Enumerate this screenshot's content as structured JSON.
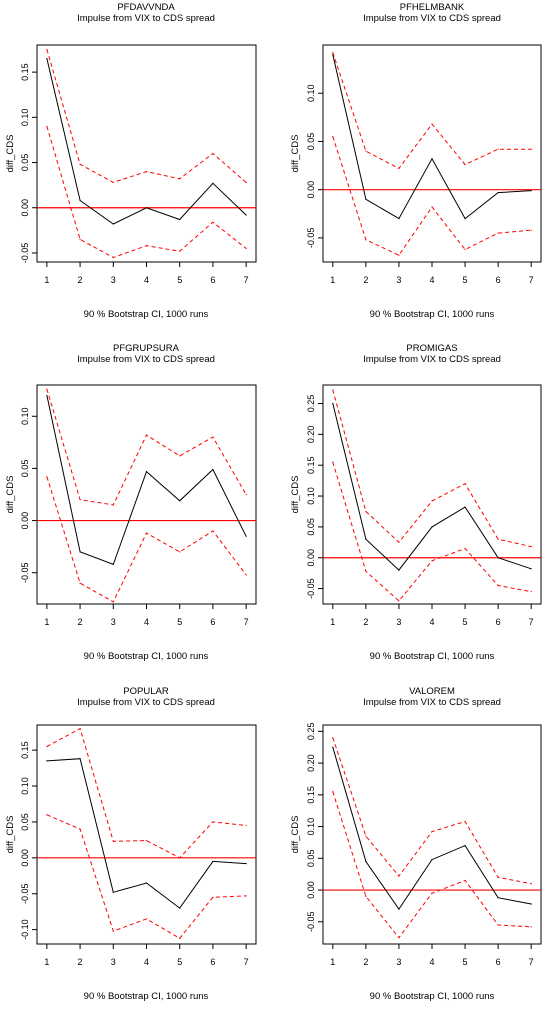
{
  "chart_data": [
    {
      "type": "line",
      "title": "PFDAVVNDA",
      "subtitle": "Impulse from VIX to CDS spread",
      "xlabel": "90 % Bootstrap CI,  1000 runs",
      "ylabel": "diff_CDS",
      "x": [
        1,
        2,
        3,
        4,
        5,
        6,
        7
      ],
      "xticks": [
        "1",
        "2",
        "3",
        "4",
        "5",
        "6",
        "7"
      ],
      "ylim": [
        -0.06,
        0.18
      ],
      "yticks": [
        -0.05,
        0.0,
        0.05,
        0.1,
        0.15
      ],
      "ytick_labels": [
        "-0.05",
        "0.00",
        "0.05",
        "0.10",
        "0.15"
      ],
      "series": [
        {
          "role": "irf",
          "values": [
            0.165,
            0.008,
            -0.018,
            0.0,
            -0.013,
            0.027,
            -0.008
          ]
        },
        {
          "role": "upper",
          "values": [
            0.175,
            0.048,
            0.028,
            0.04,
            0.032,
            0.06,
            0.028
          ]
        },
        {
          "role": "lower",
          "values": [
            0.09,
            -0.035,
            -0.055,
            -0.042,
            -0.048,
            -0.016,
            -0.045
          ]
        }
      ]
    },
    {
      "type": "line",
      "title": "PFHELMBANK",
      "subtitle": "Impulse from VIX to CDS spread",
      "xlabel": "90 % Bootstrap CI,  1000 runs",
      "ylabel": "diff_CDS",
      "x": [
        1,
        2,
        3,
        4,
        5,
        6,
        7
      ],
      "xticks": [
        "1",
        "2",
        "3",
        "4",
        "5",
        "6",
        "7"
      ],
      "ylim": [
        -0.075,
        0.15
      ],
      "yticks": [
        -0.05,
        0.0,
        0.05,
        0.1
      ],
      "ytick_labels": [
        "-0.05",
        "0.00",
        "0.05",
        "0.10"
      ],
      "series": [
        {
          "role": "irf",
          "values": [
            0.14,
            -0.01,
            -0.03,
            0.032,
            -0.03,
            -0.003,
            -0.001
          ]
        },
        {
          "role": "upper",
          "values": [
            0.142,
            0.04,
            0.022,
            0.068,
            0.026,
            0.042,
            0.042
          ]
        },
        {
          "role": "lower",
          "values": [
            0.055,
            -0.052,
            -0.068,
            -0.018,
            -0.062,
            -0.045,
            -0.042
          ]
        }
      ]
    },
    {
      "type": "line",
      "title": "PFGRUPSURA",
      "subtitle": "Impulse from VIX to CDS spread",
      "xlabel": "90 % Bootstrap CI,  1000 runs",
      "ylabel": "diff_CDS",
      "x": [
        1,
        2,
        3,
        4,
        5,
        6,
        7
      ],
      "xticks": [
        "1",
        "2",
        "3",
        "4",
        "5",
        "6",
        "7"
      ],
      "ylim": [
        -0.08,
        0.13
      ],
      "yticks": [
        -0.05,
        0.0,
        0.05,
        0.1
      ],
      "ytick_labels": [
        "-0.05",
        "0.00",
        "0.05",
        "0.10"
      ],
      "series": [
        {
          "role": "irf",
          "values": [
            0.12,
            -0.03,
            -0.042,
            0.047,
            0.019,
            0.049,
            -0.015
          ]
        },
        {
          "role": "upper",
          "values": [
            0.126,
            0.02,
            0.015,
            0.082,
            0.062,
            0.08,
            0.025
          ]
        },
        {
          "role": "lower",
          "values": [
            0.042,
            -0.06,
            -0.078,
            -0.012,
            -0.03,
            -0.01,
            -0.052
          ]
        }
      ]
    },
    {
      "type": "line",
      "title": "PROMIGAS",
      "subtitle": "Impulse from VIX to CDS spread",
      "xlabel": "90 % Bootstrap CI,  1000 runs",
      "ylabel": "diff_CDS",
      "x": [
        1,
        2,
        3,
        4,
        5,
        6,
        7
      ],
      "xticks": [
        "1",
        "2",
        "3",
        "4",
        "5",
        "6",
        "7"
      ],
      "ylim": [
        -0.075,
        0.28
      ],
      "yticks": [
        -0.05,
        0.0,
        0.05,
        0.1,
        0.15,
        0.2,
        0.25
      ],
      "ytick_labels": [
        "-0.05",
        "0.00",
        "0.05",
        "0.10",
        "0.15",
        "0.20",
        "0.25"
      ],
      "series": [
        {
          "role": "irf",
          "values": [
            0.25,
            0.03,
            -0.02,
            0.05,
            0.082,
            0.0,
            -0.018
          ]
        },
        {
          "role": "upper",
          "values": [
            0.272,
            0.075,
            0.025,
            0.092,
            0.12,
            0.03,
            0.018
          ]
        },
        {
          "role": "lower",
          "values": [
            0.155,
            -0.022,
            -0.07,
            -0.005,
            0.015,
            -0.045,
            -0.055
          ]
        }
      ]
    },
    {
      "type": "line",
      "title": "POPULAR",
      "subtitle": "Impulse from VIX to CDS spread",
      "xlabel": "90 % Bootstrap CI,  1000 runs",
      "ylabel": "diff_CDS",
      "x": [
        1,
        2,
        3,
        4,
        5,
        6,
        7
      ],
      "xticks": [
        "1",
        "2",
        "3",
        "4",
        "5",
        "6",
        "7"
      ],
      "ylim": [
        -0.12,
        0.185
      ],
      "yticks": [
        -0.1,
        -0.05,
        0.0,
        0.05,
        0.1,
        0.15
      ],
      "ytick_labels": [
        "-0.10",
        "-0.05",
        "0.00",
        "0.05",
        "0.10",
        "0.15"
      ],
      "series": [
        {
          "role": "irf",
          "values": [
            0.135,
            0.138,
            -0.048,
            -0.035,
            -0.07,
            -0.005,
            -0.008
          ]
        },
        {
          "role": "upper",
          "values": [
            0.155,
            0.18,
            0.023,
            0.024,
            0.0,
            0.05,
            0.045
          ]
        },
        {
          "role": "lower",
          "values": [
            0.06,
            0.04,
            -0.102,
            -0.085,
            -0.112,
            -0.055,
            -0.053
          ]
        }
      ]
    },
    {
      "type": "line",
      "title": "VALOREM",
      "subtitle": "Impulse from VIX to CDS spread",
      "xlabel": "90 % Bootstrap CI,  1000 runs",
      "ylabel": "diff_CDS",
      "x": [
        1,
        2,
        3,
        4,
        5,
        6,
        7
      ],
      "xticks": [
        "1",
        "2",
        "3",
        "4",
        "5",
        "6",
        "7"
      ],
      "ylim": [
        -0.085,
        0.26
      ],
      "yticks": [
        -0.05,
        0.0,
        0.05,
        0.1,
        0.15,
        0.2,
        0.25
      ],
      "ytick_labels": [
        "-0.05",
        "0.00",
        "0.05",
        "0.10",
        "0.15",
        "0.20",
        "0.25"
      ],
      "series": [
        {
          "role": "irf",
          "values": [
            0.225,
            0.045,
            -0.03,
            0.048,
            0.07,
            -0.012,
            -0.022
          ]
        },
        {
          "role": "upper",
          "values": [
            0.24,
            0.085,
            0.022,
            0.092,
            0.108,
            0.02,
            0.01
          ]
        },
        {
          "role": "lower",
          "values": [
            0.155,
            -0.01,
            -0.075,
            -0.005,
            0.015,
            -0.055,
            -0.058
          ]
        }
      ]
    }
  ],
  "colors": {
    "irf": "#000000",
    "ci": "#ff0000",
    "zero_line": "#ff0000",
    "axis": "#000000"
  }
}
